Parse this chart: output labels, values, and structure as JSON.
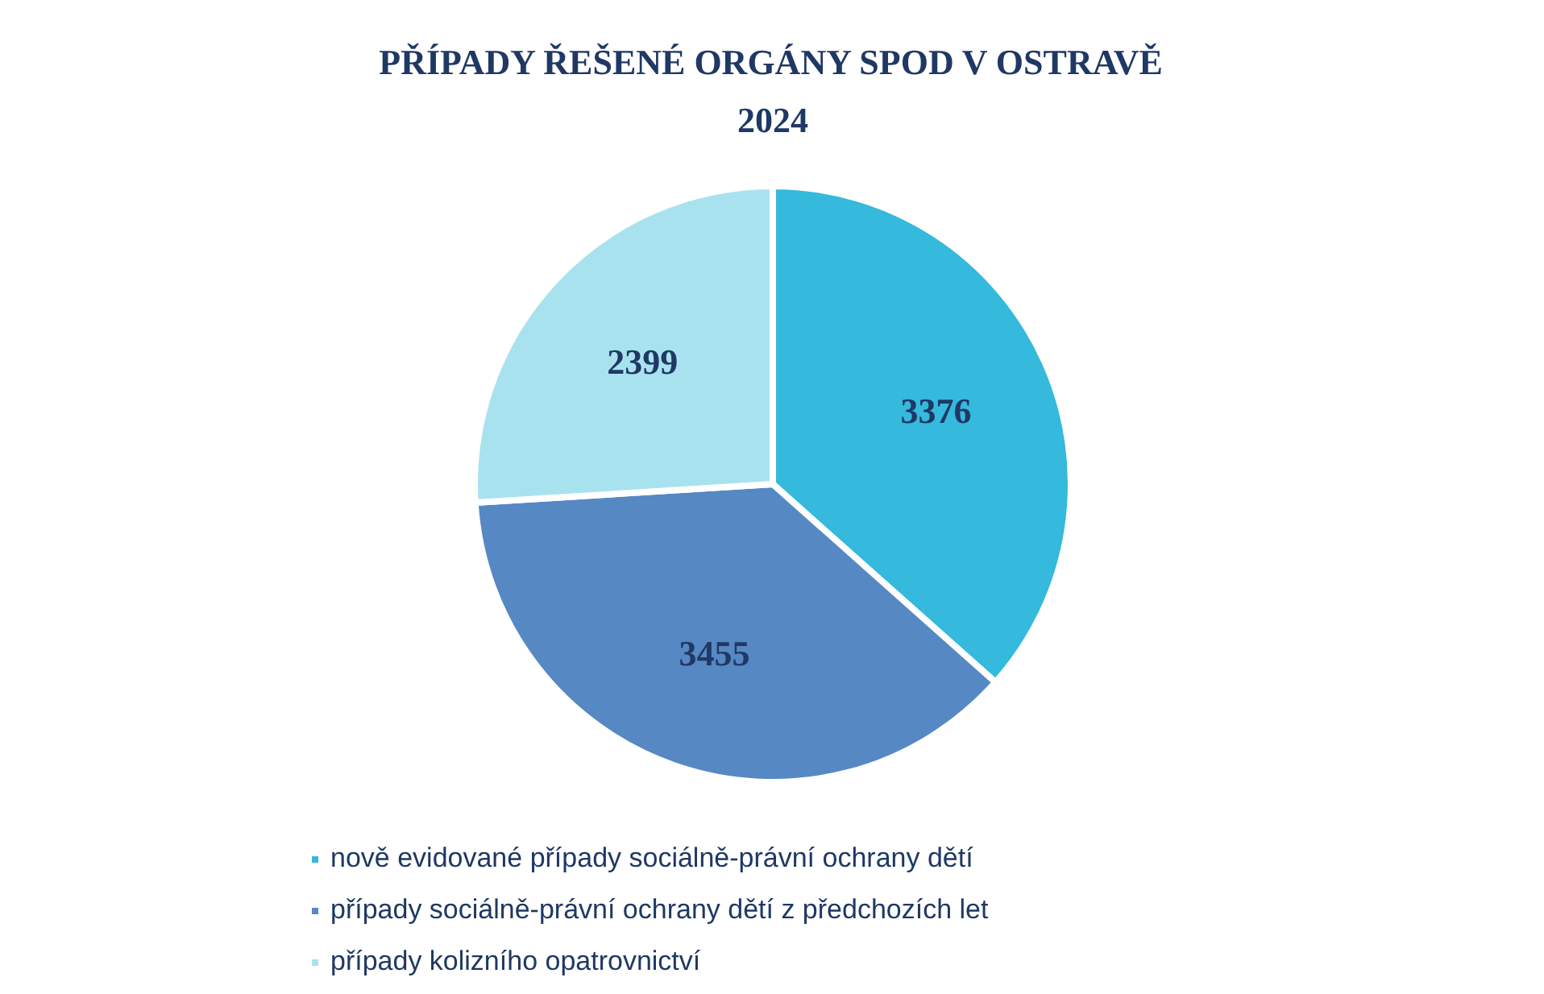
{
  "chart_data": {
    "type": "pie",
    "title": "PŘÍPADY ŘEŠENÉ ORGÁNY SPOD V OSTRAVĚ 2024",
    "categories": [
      "nově evidované případy sociálně-právní ochrany dětí",
      "případy sociálně-právní ochrany dětí z předchozích let",
      "případy kolizního opatrovnictví"
    ],
    "values": [
      3376,
      3455,
      2399
    ],
    "colors": [
      "#35b9dd",
      "#5688c4",
      "#a9e2ef"
    ],
    "data_labels": true,
    "legend": "bottom"
  }
}
